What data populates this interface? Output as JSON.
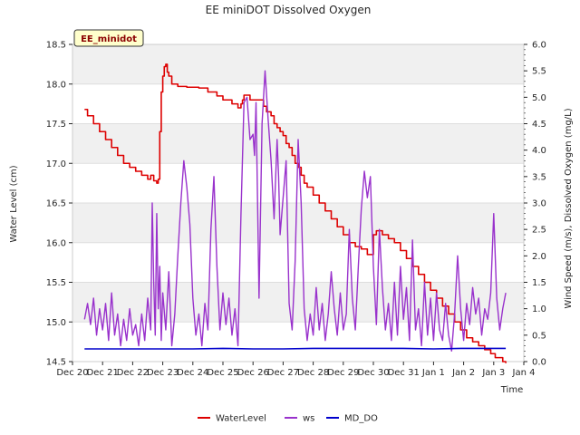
{
  "chart_data": {
    "type": "line",
    "title": "EE miniDOT Dissolved Oxygen",
    "site_label": "EE_minidot",
    "xlabel": "Time",
    "ylabel_left": "Water Level (cm)",
    "ylabel_right": "Wind Speed (m/s), Dissolved Oxygen (mg/L)",
    "ylim_left": [
      14.5,
      18.5
    ],
    "ylim_right": [
      0.0,
      6.0
    ],
    "xlim_days": [
      0,
      15
    ],
    "x_tick_labels": [
      "Dec 20",
      "Dec 21",
      "Dec 22",
      "Dec 23",
      "Dec 24",
      "Dec 25",
      "Dec 26",
      "Dec 27",
      "Dec 28",
      "Dec 29",
      "Dec 30",
      "Dec 31",
      "Jan 1",
      "Jan 2",
      "Jan 3",
      "Jan 4"
    ],
    "y_left_ticks": [
      "14.5",
      "15.0",
      "15.5",
      "16.0",
      "16.5",
      "17.0",
      "17.5",
      "18.0",
      "18.5"
    ],
    "y_right_ticks": [
      "0.0",
      "0.5",
      "1.0",
      "1.5",
      "2.0",
      "2.5",
      "3.0",
      "3.5",
      "4.0",
      "4.5",
      "5.0",
      "5.5",
      "6.0"
    ],
    "background_bands": true,
    "legend_position": "bottom-center",
    "series": [
      {
        "name": "WaterLevel",
        "axis": "left",
        "color": "#dd0000",
        "x": [
          0.4,
          0.5,
          0.7,
          0.9,
          1.1,
          1.3,
          1.5,
          1.7,
          1.9,
          2.1,
          2.3,
          2.5,
          2.6,
          2.7,
          2.8,
          2.85,
          2.9,
          2.95,
          3.0,
          3.05,
          3.1,
          3.15,
          3.2,
          3.3,
          3.5,
          3.8,
          4.2,
          4.5,
          4.8,
          5.0,
          5.3,
          5.5,
          5.6,
          5.65,
          5.7,
          5.9,
          6.2,
          6.3,
          6.35,
          6.45,
          6.6,
          6.7,
          6.8,
          6.9,
          7.0,
          7.1,
          7.2,
          7.3,
          7.4,
          7.5,
          7.6,
          7.7,
          7.8,
          8.0,
          8.2,
          8.4,
          8.6,
          8.8,
          9.0,
          9.2,
          9.4,
          9.6,
          9.8,
          9.9,
          10.0,
          10.1,
          10.2,
          10.3,
          10.5,
          10.7,
          10.9,
          11.1,
          11.3,
          11.5,
          11.7,
          11.9,
          12.1,
          12.3,
          12.5,
          12.7,
          12.9,
          13.1,
          13.3,
          13.5,
          13.7,
          13.9,
          14.05,
          14.2,
          14.3,
          14.4
        ],
        "y": [
          17.68,
          17.6,
          17.5,
          17.4,
          17.3,
          17.2,
          17.1,
          17.0,
          16.95,
          16.9,
          16.85,
          16.8,
          16.85,
          16.78,
          16.75,
          16.8,
          17.4,
          17.9,
          18.1,
          18.22,
          18.25,
          18.15,
          18.1,
          18.0,
          17.97,
          17.96,
          17.95,
          17.9,
          17.85,
          17.8,
          17.75,
          17.7,
          17.75,
          17.8,
          17.86,
          17.8,
          17.8,
          17.8,
          17.72,
          17.65,
          17.6,
          17.5,
          17.45,
          17.4,
          17.35,
          17.25,
          17.2,
          17.1,
          17.0,
          16.95,
          16.85,
          16.75,
          16.7,
          16.6,
          16.5,
          16.4,
          16.3,
          16.2,
          16.1,
          16.0,
          15.95,
          15.92,
          15.85,
          15.85,
          16.1,
          16.15,
          16.15,
          16.1,
          16.05,
          16.0,
          15.9,
          15.8,
          15.7,
          15.6,
          15.5,
          15.4,
          15.3,
          15.2,
          15.1,
          15.0,
          14.9,
          14.8,
          14.75,
          14.7,
          14.65,
          14.6,
          14.55,
          14.55,
          14.5,
          14.48
        ]
      },
      {
        "name": "ws",
        "axis": "right",
        "color": "#9932cc",
        "x": [
          0.4,
          0.5,
          0.6,
          0.7,
          0.8,
          0.9,
          1.0,
          1.1,
          1.2,
          1.3,
          1.4,
          1.5,
          1.6,
          1.7,
          1.8,
          1.9,
          2.0,
          2.1,
          2.2,
          2.3,
          2.4,
          2.5,
          2.6,
          2.65,
          2.7,
          2.75,
          2.8,
          2.85,
          2.9,
          2.95,
          3.0,
          3.1,
          3.2,
          3.3,
          3.4,
          3.5,
          3.6,
          3.7,
          3.8,
          3.9,
          4.0,
          4.1,
          4.2,
          4.3,
          4.4,
          4.5,
          4.6,
          4.7,
          4.8,
          4.9,
          5.0,
          5.1,
          5.2,
          5.3,
          5.4,
          5.5,
          5.6,
          5.7,
          5.8,
          5.9,
          6.0,
          6.05,
          6.1,
          6.2,
          6.3,
          6.4,
          6.5,
          6.6,
          6.7,
          6.8,
          6.85,
          6.9,
          7.0,
          7.1,
          7.2,
          7.3,
          7.4,
          7.5,
          7.6,
          7.7,
          7.8,
          7.9,
          8.0,
          8.1,
          8.2,
          8.3,
          8.4,
          8.5,
          8.6,
          8.7,
          8.8,
          8.9,
          9.0,
          9.1,
          9.2,
          9.3,
          9.4,
          9.5,
          9.6,
          9.7,
          9.8,
          9.9,
          10.0,
          10.1,
          10.2,
          10.3,
          10.4,
          10.5,
          10.6,
          10.7,
          10.8,
          10.9,
          11.0,
          11.1,
          11.2,
          11.3,
          11.4,
          11.5,
          11.6,
          11.7,
          11.8,
          11.9,
          12.0,
          12.1,
          12.2,
          12.3,
          12.4,
          12.5,
          12.6,
          12.7,
          12.8,
          12.9,
          13.0,
          13.1,
          13.2,
          13.3,
          13.4,
          13.5,
          13.6,
          13.7,
          13.8,
          13.9,
          14.0,
          14.1,
          14.2,
          14.3,
          14.4
        ],
        "y": [
          0.8,
          1.1,
          0.7,
          1.2,
          0.5,
          1.0,
          0.6,
          1.1,
          0.4,
          1.3,
          0.5,
          0.9,
          0.3,
          0.8,
          0.4,
          1.0,
          0.5,
          0.7,
          0.3,
          0.9,
          0.4,
          1.2,
          0.6,
          3.0,
          1.5,
          0.5,
          2.8,
          1.0,
          1.8,
          0.4,
          1.3,
          0.6,
          1.7,
          0.3,
          0.9,
          2.0,
          3.0,
          3.8,
          3.3,
          2.6,
          1.2,
          0.5,
          0.9,
          0.3,
          1.1,
          0.6,
          2.5,
          3.5,
          1.8,
          0.6,
          1.3,
          0.7,
          1.2,
          0.5,
          1.0,
          0.3,
          2.8,
          4.9,
          5.0,
          4.2,
          4.3,
          3.9,
          4.9,
          1.2,
          4.5,
          5.5,
          4.6,
          3.8,
          2.7,
          4.2,
          3.5,
          2.4,
          3.1,
          3.8,
          1.1,
          0.6,
          1.9,
          4.2,
          3.0,
          1.0,
          0.4,
          0.9,
          0.5,
          1.4,
          0.6,
          1.1,
          0.4,
          0.9,
          1.7,
          1.0,
          0.5,
          1.3,
          0.6,
          0.9,
          2.5,
          1.2,
          0.6,
          1.8,
          2.9,
          3.6,
          3.1,
          3.5,
          1.8,
          0.7,
          2.5,
          1.4,
          0.6,
          1.1,
          0.4,
          1.5,
          0.5,
          1.8,
          0.8,
          1.4,
          0.4,
          2.3,
          0.6,
          1.0,
          0.3,
          1.5,
          0.5,
          1.2,
          0.4,
          1.3,
          0.6,
          0.4,
          1.1,
          0.5,
          0.2,
          0.9,
          2.0,
          1.0,
          0.4,
          1.1,
          0.7,
          1.4,
          0.9,
          1.2,
          0.5,
          1.0,
          0.8,
          1.3,
          2.8,
          1.2,
          0.6,
          1.0,
          1.3
        ]
      },
      {
        "name": "MD_DO",
        "axis": "right",
        "color": "#0000cc",
        "x": [
          0.4,
          2.0,
          4.0,
          5.0,
          6.0,
          7.0,
          8.0,
          9.0,
          10.0,
          11.0,
          12.0,
          13.0,
          14.0,
          14.4
        ],
        "y": [
          0.24,
          0.24,
          0.24,
          0.25,
          0.24,
          0.24,
          0.25,
          0.25,
          0.25,
          0.25,
          0.24,
          0.25,
          0.25,
          0.25
        ]
      }
    ]
  }
}
